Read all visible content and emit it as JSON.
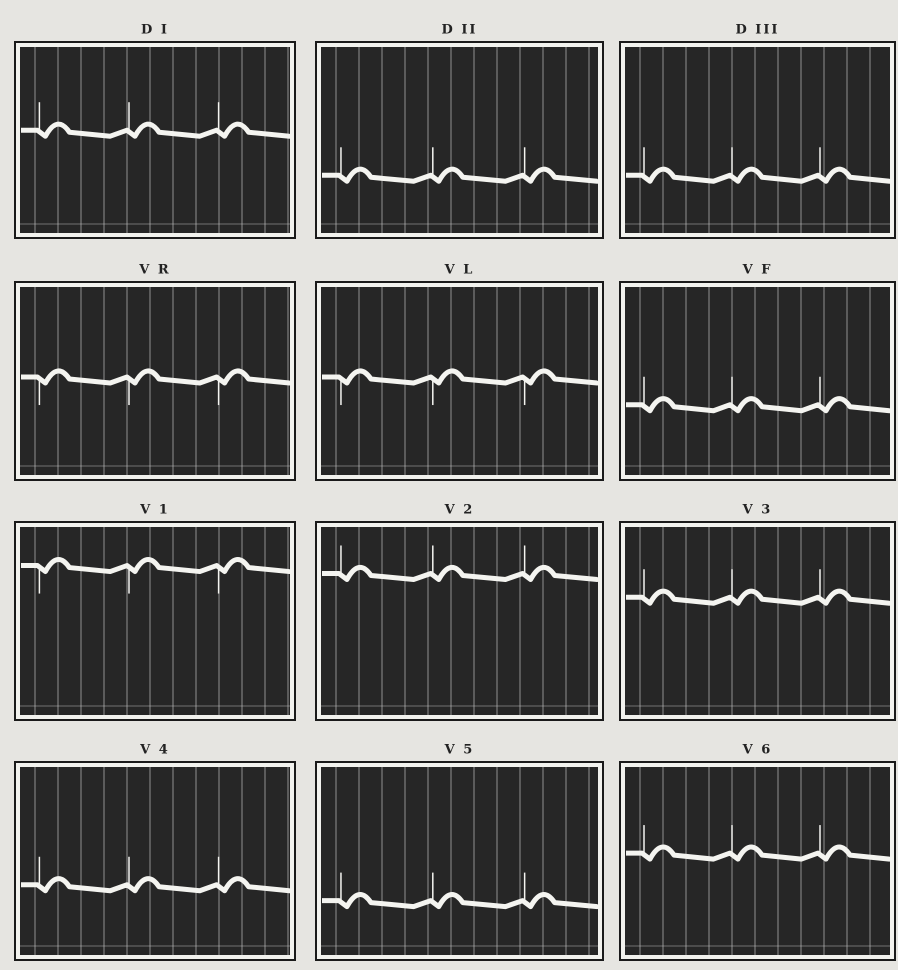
{
  "panels": [
    {
      "label": "D I"
    },
    {
      "label": "D II"
    },
    {
      "label": "D III"
    },
    {
      "label": "V R"
    },
    {
      "label": "V L"
    },
    {
      "label": "V F"
    },
    {
      "label": "V 1"
    },
    {
      "label": "V 2"
    },
    {
      "label": "V 3"
    },
    {
      "label": "V 4"
    },
    {
      "label": "V 5"
    },
    {
      "label": "V 6"
    }
  ]
}
